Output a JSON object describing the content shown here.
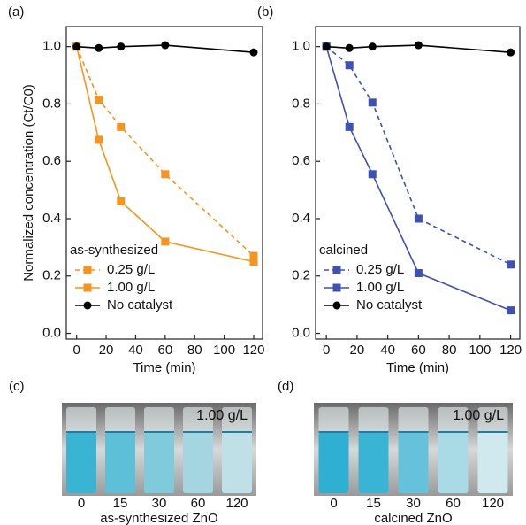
{
  "chart_data": [
    {
      "type": "line",
      "panel_label": "(a)",
      "y_label": "Normalized concentration (Ct/C0)",
      "x_label": "Time (min)",
      "legend_title": "as-synthesized",
      "legend": "lower left",
      "x": [
        0,
        15,
        30,
        60,
        120
      ],
      "series": [
        {
          "name": "0.25 g/L",
          "color": "#f7941d",
          "dashed": true,
          "marker": "square",
          "values": [
            1.0,
            0.815,
            0.72,
            0.555,
            0.27
          ]
        },
        {
          "name": "1.00 g/L",
          "color": "#f7941d",
          "dashed": false,
          "marker": "square",
          "values": [
            1.0,
            0.675,
            0.46,
            0.32,
            0.25
          ]
        },
        {
          "name": "No catalyst",
          "color": "#000000",
          "dashed": false,
          "marker": "circle",
          "values": [
            1.0,
            0.995,
            1.0,
            1.005,
            0.98
          ]
        }
      ],
      "xlim": [
        -7,
        126
      ],
      "ylim": [
        -0.02,
        1.07
      ],
      "xticks": [
        0,
        20,
        40,
        60,
        80,
        100,
        120
      ],
      "yticks": [
        {
          "value": 0,
          "label": "0.0"
        },
        0.2,
        0.4,
        0.6,
        0.8,
        {
          "value": 1,
          "label": "1.0"
        }
      ]
    },
    {
      "type": "line",
      "panel_label": "(b)",
      "x_label": "Time (min)",
      "legend_title": "calcined",
      "legend": "lower left",
      "x": [
        0,
        15,
        30,
        60,
        120
      ],
      "series": [
        {
          "name": "0.25 g/L",
          "color": "#3f51b5",
          "dashed": true,
          "marker": "square",
          "values": [
            1.0,
            0.935,
            0.805,
            0.4,
            0.24
          ]
        },
        {
          "name": "1.00 g/L",
          "color": "#3f51b5",
          "dashed": false,
          "marker": "square",
          "values": [
            1.0,
            0.72,
            0.555,
            0.21,
            0.08
          ]
        },
        {
          "name": "No catalyst",
          "color": "#000000",
          "dashed": false,
          "marker": "circle",
          "values": [
            1.0,
            0.995,
            1.0,
            1.005,
            0.98
          ]
        }
      ],
      "xlim": [
        -7,
        126
      ],
      "ylim": [
        -0.02,
        1.07
      ],
      "xticks": [
        0,
        20,
        40,
        60,
        80,
        100,
        120
      ],
      "yticks": [
        {
          "value": 0,
          "label": "0.0"
        },
        0.2,
        0.4,
        0.6,
        0.8,
        {
          "value": 1,
          "label": "1.0"
        }
      ]
    }
  ],
  "photos": [
    {
      "label": "(c)",
      "concentration": "1.00 g/L",
      "times": [
        "0",
        "15",
        "30",
        "60",
        "120"
      ],
      "caption": "as-synthesized ZnO"
    },
    {
      "label": "(d)",
      "concentration": "1.00 g/L",
      "times": [
        "0",
        "15",
        "30",
        "60",
        "120"
      ],
      "caption": "calcined ZnO"
    }
  ]
}
